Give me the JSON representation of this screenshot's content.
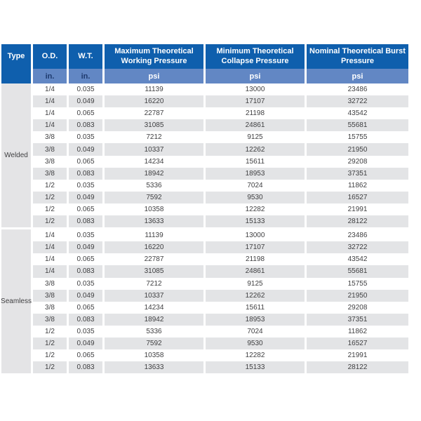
{
  "colors": {
    "header_bg": "#0f5fad",
    "subheader_bg": "#6287c4",
    "unit_in_text": "#1e3a6e",
    "unit_psi_text": "#ffffff",
    "stripe_bg": "#e3e4e6",
    "type_col_bg": "#e4e4e6",
    "data_text": "#3f3f41"
  },
  "chart_data": {
    "type": "table",
    "columns": [
      {
        "label": "Type",
        "unit": ""
      },
      {
        "label": "O.D.",
        "unit": "in."
      },
      {
        "label": "W.T.",
        "unit": "in."
      },
      {
        "label": "Maximum Theoretical Working Pressure",
        "unit": "psi"
      },
      {
        "label": "Minimum Theoretical Collapse Pressure",
        "unit": "psi"
      },
      {
        "label": "Nominal Theoretical Burst Pressure",
        "unit": "psi"
      }
    ],
    "sections": [
      {
        "type": "Welded",
        "rows": [
          [
            "1/4",
            "0.035",
            "11139",
            "13000",
            "23486"
          ],
          [
            "1/4",
            "0.049",
            "16220",
            "17107",
            "32722"
          ],
          [
            "1/4",
            "0.065",
            "22787",
            "21198",
            "43542"
          ],
          [
            "1/4",
            "0.083",
            "31085",
            "24861",
            "55681"
          ],
          [
            "3/8",
            "0.035",
            "7212",
            "9125",
            "15755"
          ],
          [
            "3/8",
            "0.049",
            "10337",
            "12262",
            "21950"
          ],
          [
            "3/8",
            "0.065",
            "14234",
            "15611",
            "29208"
          ],
          [
            "3/8",
            "0.083",
            "18942",
            "18953",
            "37351"
          ],
          [
            "1/2",
            "0.035",
            "5336",
            "7024",
            "11862"
          ],
          [
            "1/2",
            "0.049",
            "7592",
            "9530",
            "16527"
          ],
          [
            "1/2",
            "0.065",
            "10358",
            "12282",
            "21991"
          ],
          [
            "1/2",
            "0.083",
            "13633",
            "15133",
            "28122"
          ]
        ]
      },
      {
        "type": "Seamless",
        "rows": [
          [
            "1/4",
            "0.035",
            "11139",
            "13000",
            "23486"
          ],
          [
            "1/4",
            "0.049",
            "16220",
            "17107",
            "32722"
          ],
          [
            "1/4",
            "0.065",
            "22787",
            "21198",
            "43542"
          ],
          [
            "1/4",
            "0.083",
            "31085",
            "24861",
            "55681"
          ],
          [
            "3/8",
            "0.035",
            "7212",
            "9125",
            "15755"
          ],
          [
            "3/8",
            "0.049",
            "10337",
            "12262",
            "21950"
          ],
          [
            "3/8",
            "0.065",
            "14234",
            "15611",
            "29208"
          ],
          [
            "3/8",
            "0.083",
            "18942",
            "18953",
            "37351"
          ],
          [
            "1/2",
            "0.035",
            "5336",
            "7024",
            "11862"
          ],
          [
            "1/2",
            "0.049",
            "7592",
            "9530",
            "16527"
          ],
          [
            "1/2",
            "0.065",
            "10358",
            "12282",
            "21991"
          ],
          [
            "1/2",
            "0.083",
            "13633",
            "15133",
            "28122"
          ]
        ]
      }
    ]
  }
}
